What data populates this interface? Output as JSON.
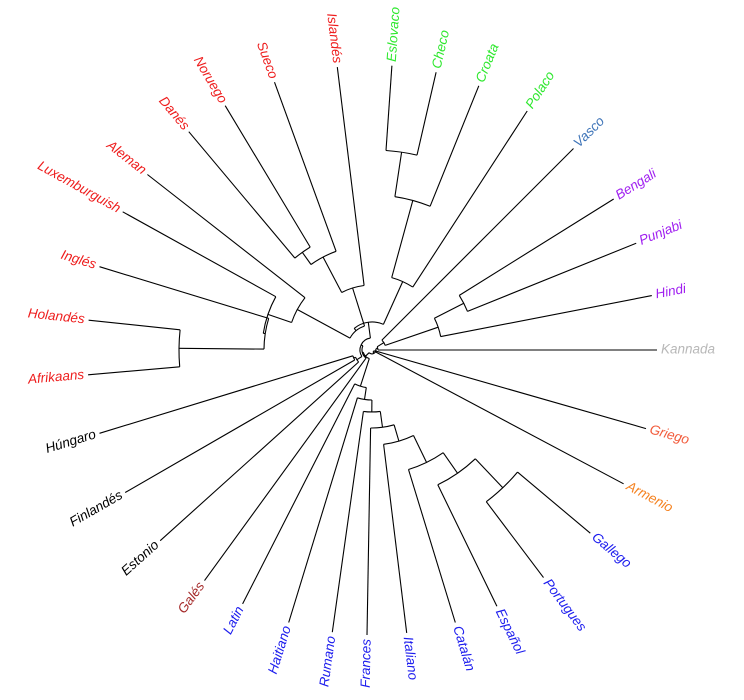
{
  "figure": {
    "colors": {
      "germanic": "#ee1c1c",
      "slavic": "#2ee82e",
      "basque": "#3e74b8",
      "indo_aryan": "#a020f0",
      "dravidian": "#b8b8b8",
      "greek": "#f25c3c",
      "armenian": "#f58220",
      "romance": "#1c1cee",
      "celtic": "#a52a2a",
      "uralic": "#000000",
      "branch": "#000000"
    },
    "tips": [
      {
        "id": "islandes",
        "label": "Islandés",
        "group": "germanic"
      },
      {
        "id": "sueco",
        "label": "Sueco",
        "group": "germanic"
      },
      {
        "id": "noruego",
        "label": "Noruego",
        "group": "germanic"
      },
      {
        "id": "danes",
        "label": "Danés",
        "group": "germanic"
      },
      {
        "id": "aleman",
        "label": "Aleman",
        "group": "germanic"
      },
      {
        "id": "luxemburguish",
        "label": "Luxemburguish",
        "group": "germanic"
      },
      {
        "id": "ingles",
        "label": "Inglés",
        "group": "germanic"
      },
      {
        "id": "holandes",
        "label": "Holandés",
        "group": "germanic"
      },
      {
        "id": "afrikaans",
        "label": "Afrikaans",
        "group": "germanic"
      },
      {
        "id": "hungaro",
        "label": "Húngaro",
        "group": "uralic"
      },
      {
        "id": "finlandes",
        "label": "Finlandés",
        "group": "uralic"
      },
      {
        "id": "estonio",
        "label": "Estonio",
        "group": "uralic"
      },
      {
        "id": "gales",
        "label": "Galés",
        "group": "celtic"
      },
      {
        "id": "latin",
        "label": "Latin",
        "group": "romance"
      },
      {
        "id": "haitiano",
        "label": "Haitiano",
        "group": "romance"
      },
      {
        "id": "rumano",
        "label": "Rumano",
        "group": "romance"
      },
      {
        "id": "frances",
        "label": "Frances",
        "group": "romance"
      },
      {
        "id": "italiano",
        "label": "Italiano",
        "group": "romance"
      },
      {
        "id": "catalan",
        "label": "Catalán",
        "group": "romance"
      },
      {
        "id": "espanol",
        "label": "Español",
        "group": "romance"
      },
      {
        "id": "portugues",
        "label": "Portugues",
        "group": "romance"
      },
      {
        "id": "gallego",
        "label": "Gallego",
        "group": "romance"
      },
      {
        "id": "armenio",
        "label": "Armenio",
        "group": "armenian"
      },
      {
        "id": "griego",
        "label": "Griego",
        "group": "greek"
      },
      {
        "id": "kannada",
        "label": "Kannada",
        "group": "dravidian"
      },
      {
        "id": "hindi",
        "label": "Hindi",
        "group": "indo_aryan"
      },
      {
        "id": "punjabi",
        "label": "Punjabi",
        "group": "indo_aryan"
      },
      {
        "id": "bengali",
        "label": "Bengali",
        "group": "indo_aryan"
      },
      {
        "id": "vasco",
        "label": "Vasco",
        "group": "basque"
      },
      {
        "id": "polaco",
        "label": "Polaco",
        "group": "slavic"
      },
      {
        "id": "croata",
        "label": "Croata",
        "group": "slavic"
      },
      {
        "id": "checo",
        "label": "Checo",
        "group": "slavic"
      },
      {
        "id": "eslovaco",
        "label": "Eslovaco",
        "group": "slavic"
      }
    ]
  }
}
